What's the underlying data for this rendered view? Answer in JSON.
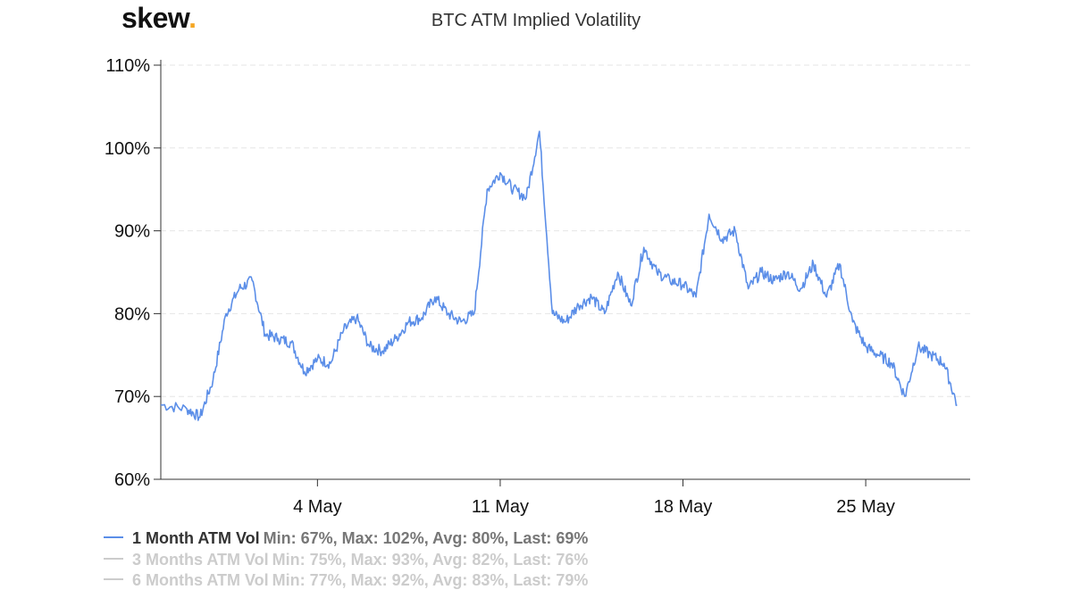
{
  "logo": {
    "text": "skew",
    "dot": "."
  },
  "colors": {
    "series1": "#5b8ee8",
    "inactive": "#cccccc",
    "axis": "#333333",
    "grid": "#e6e6e6"
  },
  "chart_data": {
    "type": "line",
    "title": "BTC ATM Implied Volatility",
    "xlabel": "",
    "ylabel": "",
    "x_range": [
      "2020-04-28",
      "2020-05-29"
    ],
    "ylim": [
      60,
      110
    ],
    "y_ticks": [
      60,
      70,
      80,
      90,
      100,
      110
    ],
    "y_tick_labels": [
      "60%",
      "70%",
      "80%",
      "90%",
      "100%",
      "110%"
    ],
    "x_ticks": [
      "2020-05-04",
      "2020-05-11",
      "2020-05-18",
      "2020-05-25"
    ],
    "x_tick_labels": [
      "4 May",
      "11 May",
      "18 May",
      "25 May"
    ],
    "grid": "horizontal dashed",
    "legend_position": "bottom-left",
    "series": [
      {
        "name": "1 Month ATM Vol",
        "stats": "Min: 67%, Max: 102%, Avg: 80%, Last: 69%",
        "visible": true,
        "x": [
          "2020-04-28",
          "2020-04-29",
          "2020-04-30",
          "2020-04-30",
          "2020-05-01",
          "2020-05-01",
          "2020-05-02",
          "2020-05-02",
          "2020-05-03",
          "2020-05-03",
          "2020-05-04",
          "2020-05-04",
          "2020-05-05",
          "2020-05-05",
          "2020-05-06",
          "2020-05-06",
          "2020-05-07",
          "2020-05-07",
          "2020-05-08",
          "2020-05-08",
          "2020-05-09",
          "2020-05-09",
          "2020-05-10",
          "2020-05-10",
          "2020-05-11",
          "2020-05-11",
          "2020-05-12",
          "2020-05-12",
          "2020-05-13",
          "2020-05-13",
          "2020-05-14",
          "2020-05-14",
          "2020-05-15",
          "2020-05-15",
          "2020-05-16",
          "2020-05-16",
          "2020-05-17",
          "2020-05-17",
          "2020-05-18",
          "2020-05-18",
          "2020-05-19",
          "2020-05-19",
          "2020-05-20",
          "2020-05-20",
          "2020-05-21",
          "2020-05-21",
          "2020-05-22",
          "2020-05-22",
          "2020-05-23",
          "2020-05-23",
          "2020-05-24",
          "2020-05-24",
          "2020-05-25",
          "2020-05-25",
          "2020-05-26",
          "2020-05-26",
          "2020-05-27",
          "2020-05-27",
          "2020-05-28",
          "2020-05-28",
          "2020-05-29"
        ],
        "x_hours": [
          0,
          24,
          36,
          48,
          60,
          72,
          84,
          96,
          108,
          120,
          132,
          144,
          156,
          168,
          180,
          192,
          204,
          216,
          228,
          240,
          252,
          264,
          276,
          288,
          300,
          312,
          324,
          336,
          348,
          360,
          372,
          384,
          396,
          408,
          420,
          432,
          444,
          456,
          468,
          480,
          492,
          504,
          516,
          528,
          540,
          552,
          564,
          576,
          588,
          600,
          612,
          624,
          636,
          648,
          660,
          672,
          684,
          696,
          708,
          720,
          732
        ],
        "y": [
          69,
          68.5,
          67.5,
          72,
          80,
          83,
          84,
          77.5,
          77,
          76.5,
          73,
          74.5,
          74,
          78,
          79.5,
          76,
          75.5,
          77,
          79,
          79.5,
          82,
          80,
          79,
          80,
          95,
          97,
          95,
          94,
          102,
          80,
          79,
          81,
          82,
          80,
          85,
          81,
          88,
          85,
          84,
          83.5,
          82,
          92,
          89,
          90,
          83,
          85,
          84,
          85,
          83,
          86,
          82,
          86,
          79,
          76,
          75,
          74,
          70,
          76,
          75,
          74,
          69
        ]
      },
      {
        "name": "3 Months ATM Vol",
        "stats": "Min: 75%, Max: 93%, Avg: 82%, Last: 76%",
        "visible": false
      },
      {
        "name": "6 Months ATM Vol",
        "stats": "Min: 77%, Max: 92%, Avg: 83%, Last: 79%",
        "visible": false
      }
    ]
  }
}
